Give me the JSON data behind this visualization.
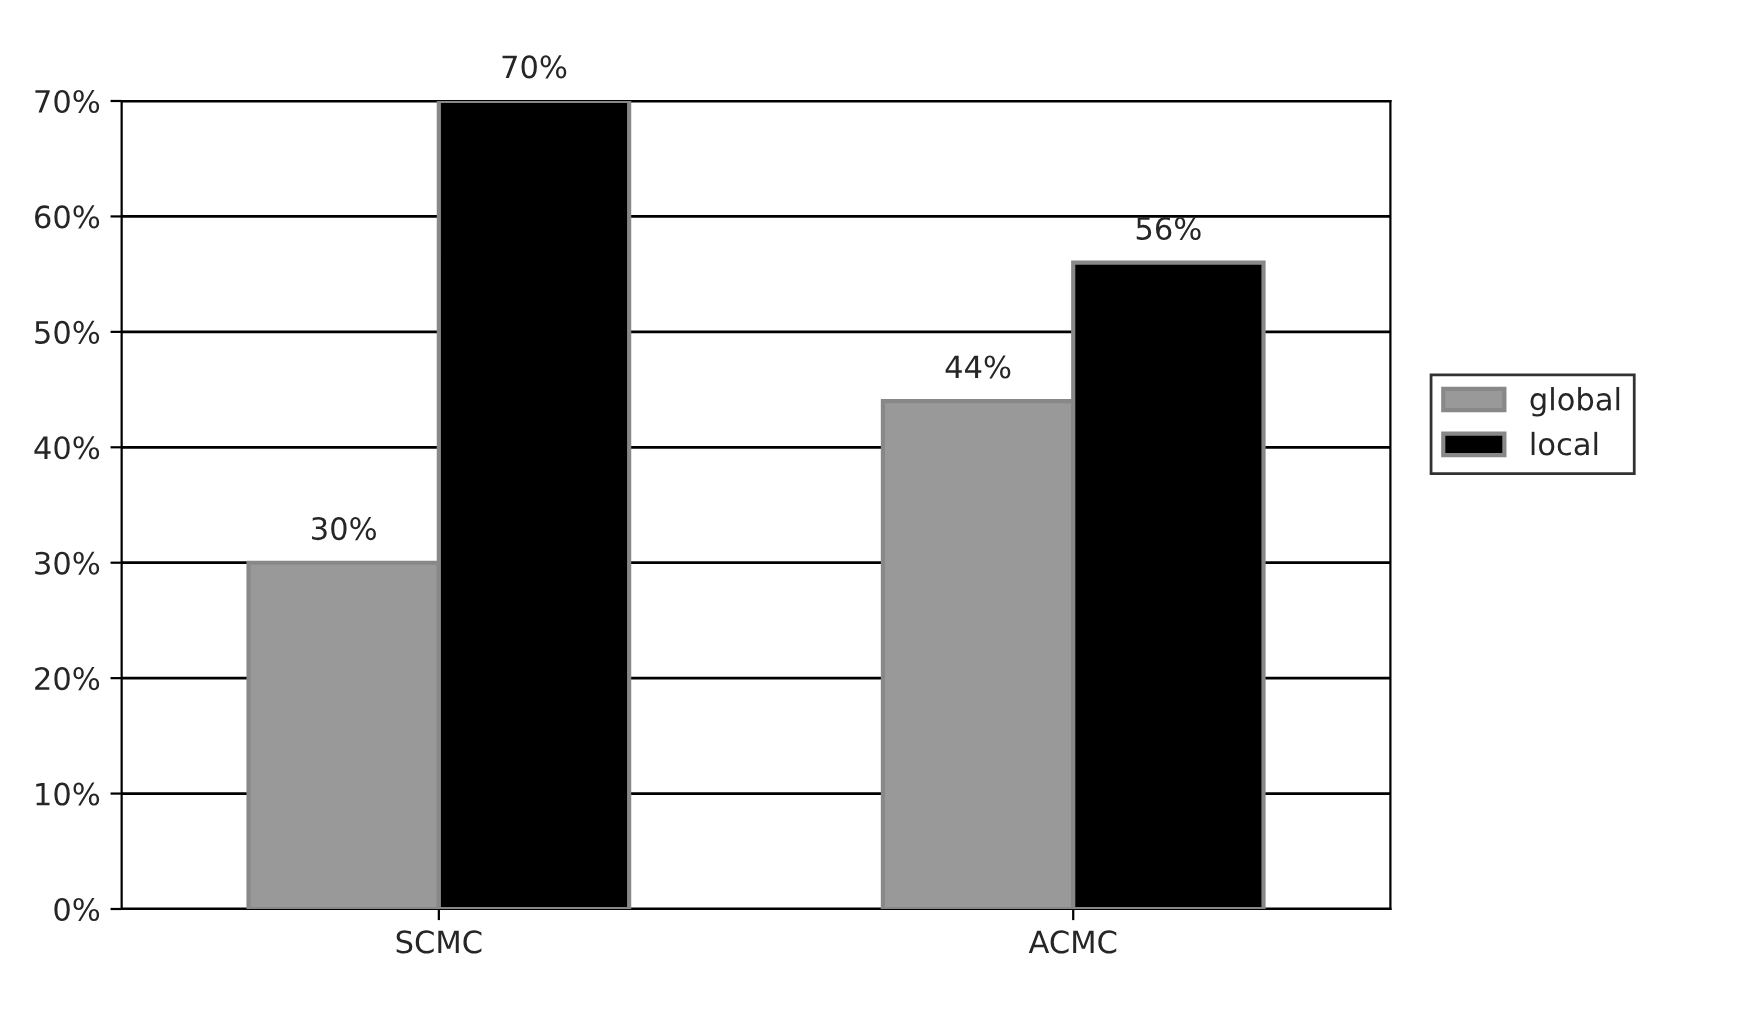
{
  "chart_data": {
    "type": "bar",
    "categories": [
      "SCMC",
      "ACMC"
    ],
    "series": [
      {
        "name": "global",
        "color": "#999999",
        "values": [
          30,
          44
        ],
        "value_labels": [
          "30%",
          "44%"
        ]
      },
      {
        "name": "local",
        "color": "#000000",
        "values": [
          70,
          56
        ],
        "value_labels": [
          "70%",
          "56%"
        ]
      }
    ],
    "ylim": [
      0,
      70
    ],
    "yticks": [
      {
        "value": 0,
        "label": "0%"
      },
      {
        "value": 10,
        "label": "10%"
      },
      {
        "value": 20,
        "label": "20%"
      },
      {
        "value": 30,
        "label": "30%"
      },
      {
        "value": 40,
        "label": "40%"
      },
      {
        "value": 50,
        "label": "50%"
      },
      {
        "value": 60,
        "label": "60%"
      },
      {
        "value": 70,
        "label": "70%"
      }
    ],
    "grid": "y",
    "legend": "right"
  }
}
